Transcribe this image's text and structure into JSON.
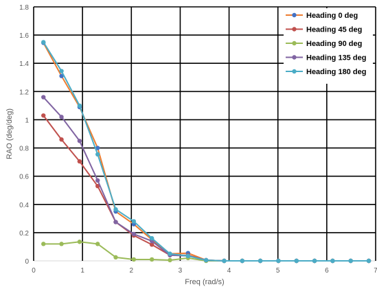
{
  "chart_data": {
    "type": "line",
    "title": "",
    "xlabel": "Freq (rad/s)",
    "ylabel": "RAO (deg/deg)",
    "xlim": [
      0,
      7
    ],
    "ylim": [
      0,
      1.8
    ],
    "x_ticks": [
      "0",
      "1",
      "2",
      "3",
      "4",
      "5",
      "6",
      "7"
    ],
    "y_ticks": [
      "0",
      "0.2",
      "0.4",
      "0.6",
      "0.8",
      "1",
      "1.2",
      "1.4",
      "1.6",
      "1.8"
    ],
    "grid": true,
    "legend_position": "top-right",
    "x": [
      0.2,
      0.57,
      0.94,
      1.31,
      1.68,
      2.05,
      2.42,
      2.79,
      3.16,
      3.53,
      3.9,
      4.27,
      4.64,
      5.01,
      5.38,
      5.75,
      6.12,
      6.49,
      6.86
    ],
    "series": [
      {
        "name": "Heading 0 deg",
        "color": "#4472C4",
        "line_color": "#ED7D31",
        "values": [
          1.545,
          1.31,
          1.09,
          0.8,
          0.35,
          0.26,
          0.15,
          0.05,
          0.055,
          0.005,
          0.0,
          0.0,
          0.0,
          0.0,
          0.0,
          0.0,
          0.0,
          0.0,
          0.0
        ]
      },
      {
        "name": "Heading 45 deg",
        "color": "#C0504D",
        "line_color": "#C0504D",
        "values": [
          1.03,
          0.86,
          0.705,
          0.53,
          0.275,
          0.18,
          0.115,
          0.04,
          0.04,
          0.005,
          0.0,
          0.0,
          0.0,
          0.0,
          0.0,
          0.0,
          0.0,
          0.0,
          0.0
        ]
      },
      {
        "name": "Heading 90 deg",
        "color": "#9BBB59",
        "line_color": "#9BBB59",
        "values": [
          0.12,
          0.12,
          0.135,
          0.12,
          0.025,
          0.01,
          0.01,
          0.005,
          0.02,
          0.0,
          0.0,
          0.0,
          0.0,
          0.0,
          0.0,
          0.0,
          0.0,
          0.0,
          0.0
        ]
      },
      {
        "name": "Heading 135 deg",
        "color": "#8064A2",
        "line_color": "#8064A2",
        "values": [
          1.16,
          1.02,
          0.85,
          0.57,
          0.275,
          0.19,
          0.14,
          0.04,
          0.035,
          0.005,
          0.0,
          0.0,
          0.0,
          0.0,
          0.0,
          0.0,
          0.0,
          0.0,
          0.0
        ]
      },
      {
        "name": "Heading 180 deg",
        "color": "#4BACC6",
        "line_color": "#4BACC6",
        "values": [
          1.55,
          1.345,
          1.1,
          0.755,
          0.365,
          0.28,
          0.16,
          0.05,
          0.035,
          0.005,
          0.0,
          0.0,
          0.0,
          0.0,
          0.0,
          0.0,
          0.0,
          0.0,
          0.0
        ]
      }
    ]
  }
}
